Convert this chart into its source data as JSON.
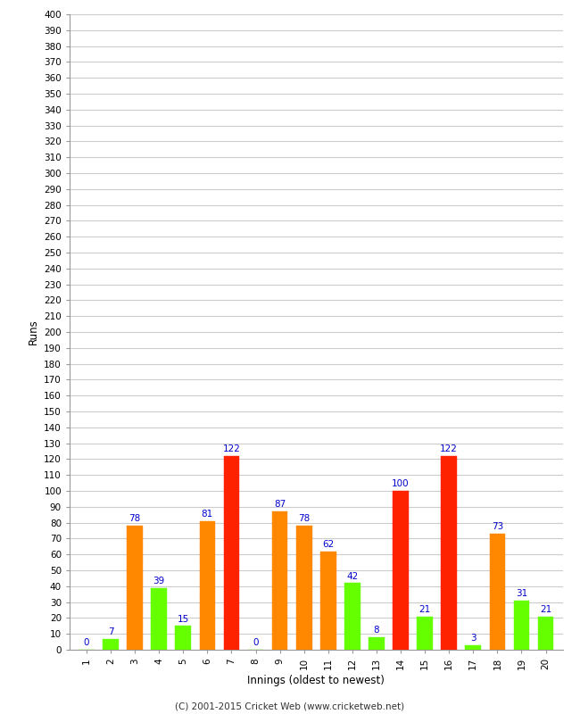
{
  "innings": [
    1,
    2,
    3,
    4,
    5,
    6,
    7,
    8,
    9,
    10,
    11,
    12,
    13,
    14,
    15,
    16,
    17,
    18,
    19,
    20
  ],
  "values": [
    0,
    7,
    78,
    39,
    15,
    81,
    122,
    0,
    87,
    78,
    62,
    42,
    8,
    100,
    21,
    122,
    3,
    73,
    31,
    21
  ],
  "colors": [
    "#66ff00",
    "#66ff00",
    "#ff8800",
    "#66ff00",
    "#66ff00",
    "#ff8800",
    "#ff2200",
    "#66ff00",
    "#ff8800",
    "#ff8800",
    "#ff8800",
    "#66ff00",
    "#66ff00",
    "#ff2200",
    "#66ff00",
    "#ff2200",
    "#66ff00",
    "#ff8800",
    "#66ff00",
    "#66ff00"
  ],
  "yticks": [
    0,
    10,
    20,
    30,
    40,
    50,
    60,
    70,
    80,
    90,
    100,
    110,
    120,
    130,
    140,
    150,
    160,
    170,
    180,
    190,
    200,
    210,
    220,
    230,
    240,
    250,
    260,
    270,
    280,
    290,
    300,
    310,
    320,
    330,
    340,
    350,
    360,
    370,
    380,
    390,
    400
  ],
  "ylim": [
    0,
    400
  ],
  "xlabel": "Innings (oldest to newest)",
  "ylabel": "Runs",
  "label_color": "#0000cc",
  "label_fontsize": 7.5,
  "axis_label_fontsize": 8.5,
  "tick_fontsize": 7.5,
  "background_color": "#ffffff",
  "grid_color": "#cccccc",
  "footer": "(C) 2001-2015 Cricket Web (www.cricketweb.net)"
}
